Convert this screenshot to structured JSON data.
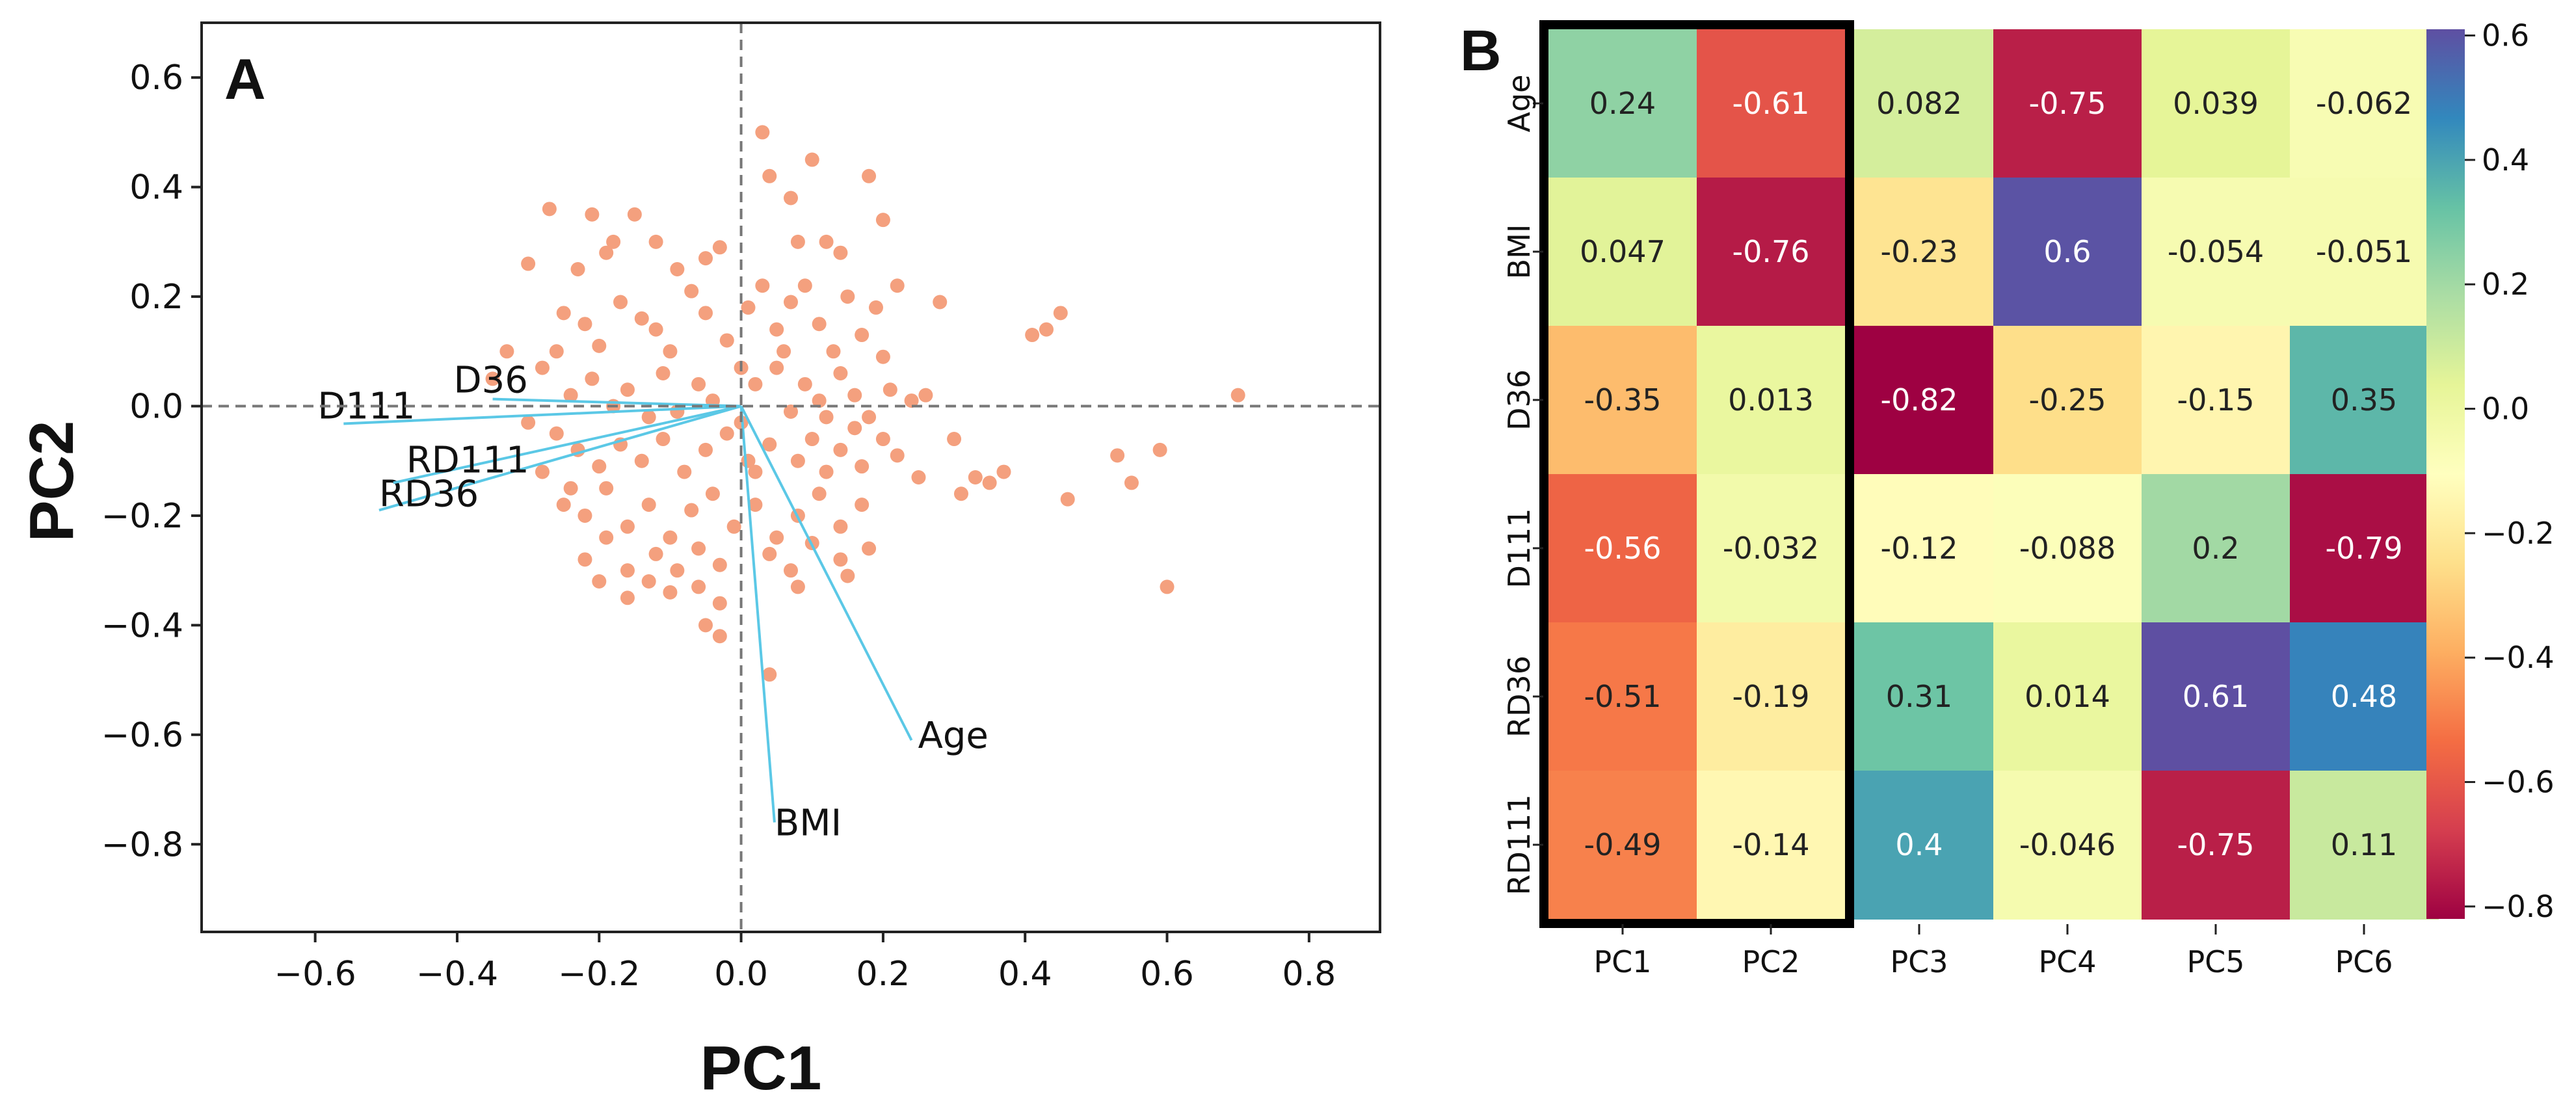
{
  "chart_data": [
    {
      "type": "scatter",
      "panel_label": "A",
      "title": "",
      "xlabel": "PC1",
      "ylabel": "PC2",
      "xlim": [
        -0.76,
        0.9
      ],
      "ylim": [
        -0.96,
        0.7
      ],
      "x_ticks": [
        -0.6,
        -0.4,
        -0.2,
        0.0,
        0.2,
        0.4,
        0.6,
        0.8
      ],
      "y_ticks": [
        0.6,
        0.4,
        0.2,
        0.0,
        -0.2,
        -0.4,
        -0.6,
        -0.8
      ],
      "x_tick_labels": [
        "−0.6",
        "−0.4",
        "−0.2",
        "0.0",
        "0.2",
        "0.4",
        "0.6",
        "0.8"
      ],
      "y_tick_labels": [
        "0.6",
        "0.4",
        "0.2",
        "0.0",
        "−0.2",
        "−0.4",
        "−0.6",
        "−0.8"
      ],
      "grid": false,
      "reference_lines": [
        "x=0 dashed",
        "y=0 dashed"
      ],
      "point_color": "#f4a07e",
      "vector_color": "#5bc8e6",
      "loadings": [
        {
          "name": "Age",
          "x": 0.24,
          "y": -0.61
        },
        {
          "name": "BMI",
          "x": 0.047,
          "y": -0.76
        },
        {
          "name": "D36",
          "x": -0.35,
          "y": 0.013
        },
        {
          "name": "D111",
          "x": -0.56,
          "y": -0.032
        },
        {
          "name": "RD36",
          "x": -0.51,
          "y": -0.19
        },
        {
          "name": "RD111",
          "x": -0.49,
          "y": -0.14
        }
      ],
      "points": [
        [
          -0.27,
          0.36
        ],
        [
          -0.21,
          0.35
        ],
        [
          -0.3,
          0.26
        ],
        [
          -0.23,
          0.25
        ],
        [
          -0.19,
          0.28
        ],
        [
          -0.18,
          0.3
        ],
        [
          -0.15,
          0.35
        ],
        [
          -0.12,
          0.3
        ],
        [
          -0.09,
          0.25
        ],
        [
          -0.05,
          0.27
        ],
        [
          -0.03,
          0.29
        ],
        [
          0.03,
          0.5
        ],
        [
          0.04,
          0.42
        ],
        [
          0.07,
          0.38
        ],
        [
          0.1,
          0.45
        ],
        [
          0.08,
          0.3
        ],
        [
          0.12,
          0.3
        ],
        [
          0.14,
          0.28
        ],
        [
          0.18,
          0.42
        ],
        [
          0.2,
          0.34
        ],
        [
          0.22,
          0.22
        ],
        [
          -0.25,
          0.17
        ],
        [
          -0.22,
          0.15
        ],
        [
          -0.2,
          0.11
        ],
        [
          -0.17,
          0.19
        ],
        [
          -0.14,
          0.16
        ],
        [
          -0.12,
          0.14
        ],
        [
          -0.1,
          0.1
        ],
        [
          -0.07,
          0.21
        ],
        [
          -0.05,
          0.17
        ],
        [
          -0.02,
          0.12
        ],
        [
          0.01,
          0.18
        ],
        [
          0.03,
          0.22
        ],
        [
          0.05,
          0.14
        ],
        [
          0.07,
          0.19
        ],
        [
          0.09,
          0.22
        ],
        [
          0.11,
          0.15
        ],
        [
          0.13,
          0.1
        ],
        [
          0.15,
          0.2
        ],
        [
          0.17,
          0.13
        ],
        [
          0.19,
          0.18
        ],
        [
          0.2,
          0.09
        ],
        [
          -0.28,
          0.07
        ],
        [
          -0.24,
          0.02
        ],
        [
          -0.21,
          0.05
        ],
        [
          -0.18,
          0.0
        ],
        [
          -0.16,
          0.03
        ],
        [
          -0.13,
          -0.02
        ],
        [
          -0.11,
          0.06
        ],
        [
          -0.09,
          -0.01
        ],
        [
          -0.06,
          0.04
        ],
        [
          -0.04,
          0.01
        ],
        [
          0.02,
          0.04
        ],
        [
          0.05,
          0.07
        ],
        [
          0.07,
          -0.01
        ],
        [
          0.09,
          0.04
        ],
        [
          0.11,
          0.01
        ],
        [
          0.14,
          0.06
        ],
        [
          0.16,
          0.02
        ],
        [
          0.18,
          -0.02
        ],
        [
          0.21,
          0.03
        ],
        [
          0.24,
          0.01
        ],
        [
          0.26,
          0.02
        ],
        [
          -0.26,
          -0.05
        ],
        [
          -0.23,
          -0.08
        ],
        [
          -0.2,
          -0.11
        ],
        [
          -0.17,
          -0.07
        ],
        [
          -0.14,
          -0.1
        ],
        [
          -0.11,
          -0.06
        ],
        [
          -0.08,
          -0.12
        ],
        [
          -0.05,
          -0.08
        ],
        [
          -0.02,
          -0.05
        ],
        [
          0.01,
          -0.1
        ],
        [
          0.04,
          -0.07
        ],
        [
          0.08,
          -0.1
        ],
        [
          0.1,
          -0.06
        ],
        [
          0.12,
          -0.12
        ],
        [
          0.14,
          -0.08
        ],
        [
          0.17,
          -0.11
        ],
        [
          0.2,
          -0.06
        ],
        [
          0.22,
          -0.09
        ],
        [
          0.25,
          -0.13
        ],
        [
          -0.25,
          -0.18
        ],
        [
          -0.22,
          -0.2
        ],
        [
          -0.19,
          -0.15
        ],
        [
          -0.16,
          -0.22
        ],
        [
          -0.13,
          -0.18
        ],
        [
          -0.1,
          -0.24
        ],
        [
          -0.07,
          -0.19
        ],
        [
          -0.04,
          -0.16
        ],
        [
          -0.01,
          -0.22
        ],
        [
          0.02,
          -0.18
        ],
        [
          0.05,
          -0.24
        ],
        [
          0.08,
          -0.2
        ],
        [
          0.11,
          -0.16
        ],
        [
          0.14,
          -0.22
        ],
        [
          0.17,
          -0.18
        ],
        [
          -0.22,
          -0.28
        ],
        [
          -0.19,
          -0.24
        ],
        [
          -0.16,
          -0.3
        ],
        [
          -0.12,
          -0.27
        ],
        [
          -0.09,
          -0.3
        ],
        [
          -0.06,
          -0.26
        ],
        [
          -0.03,
          -0.29
        ],
        [
          0.04,
          -0.27
        ],
        [
          0.07,
          -0.3
        ],
        [
          0.1,
          -0.25
        ],
        [
          0.14,
          -0.28
        ],
        [
          0.18,
          -0.26
        ],
        [
          -0.2,
          -0.32
        ],
        [
          -0.16,
          -0.35
        ],
        [
          -0.13,
          -0.32
        ],
        [
          -0.1,
          -0.34
        ],
        [
          -0.06,
          -0.33
        ],
        [
          -0.03,
          -0.36
        ],
        [
          0.08,
          -0.33
        ],
        [
          0.15,
          -0.31
        ],
        [
          -0.05,
          -0.4
        ],
        [
          -0.03,
          -0.42
        ],
        [
          0.04,
          -0.49
        ],
        [
          0.28,
          0.19
        ],
        [
          0.3,
          -0.06
        ],
        [
          0.33,
          -0.13
        ],
        [
          0.35,
          -0.14
        ],
        [
          0.31,
          -0.16
        ],
        [
          0.37,
          -0.12
        ],
        [
          0.41,
          0.13
        ],
        [
          0.43,
          0.14
        ],
        [
          0.45,
          0.17
        ],
        [
          0.46,
          -0.17
        ],
        [
          0.53,
          -0.09
        ],
        [
          0.55,
          -0.14
        ],
        [
          0.59,
          -0.08
        ],
        [
          0.6,
          -0.33
        ],
        [
          0.7,
          0.02
        ],
        [
          -0.33,
          0.1
        ],
        [
          -0.35,
          0.05
        ],
        [
          -0.3,
          -0.03
        ],
        [
          -0.28,
          -0.12
        ],
        [
          -0.26,
          0.1
        ],
        [
          -0.24,
          -0.15
        ],
        [
          0.0,
          0.07
        ],
        [
          0.0,
          -0.03
        ],
        [
          0.02,
          -0.12
        ],
        [
          0.06,
          0.1
        ],
        [
          0.12,
          -0.02
        ],
        [
          0.16,
          -0.04
        ]
      ]
    },
    {
      "type": "heatmap",
      "panel_label": "B",
      "title": "",
      "rows": [
        "Age",
        "BMI",
        "D36",
        "D111",
        "RD36",
        "RD111"
      ],
      "columns": [
        "PC1",
        "PC2",
        "PC3",
        "PC4",
        "PC5",
        "PC6"
      ],
      "values": [
        [
          0.24,
          -0.61,
          0.082,
          -0.75,
          0.039,
          -0.062
        ],
        [
          0.047,
          -0.76,
          -0.23,
          0.6,
          -0.054,
          -0.051
        ],
        [
          -0.35,
          0.013,
          -0.82,
          -0.25,
          -0.15,
          0.35
        ],
        [
          -0.56,
          -0.032,
          -0.12,
          -0.088,
          0.2,
          -0.79
        ],
        [
          -0.51,
          -0.19,
          0.31,
          0.014,
          0.61,
          0.48
        ],
        [
          -0.49,
          -0.14,
          0.4,
          -0.046,
          -0.75,
          0.11
        ]
      ],
      "value_labels": [
        [
          "0.24",
          "-0.61",
          "0.082",
          "-0.75",
          "0.039",
          "-0.062"
        ],
        [
          "0.047",
          "-0.76",
          "-0.23",
          "0.6",
          "-0.054",
          "-0.051"
        ],
        [
          "-0.35",
          "0.013",
          "-0.82",
          "-0.25",
          "-0.15",
          "0.35"
        ],
        [
          "-0.56",
          "-0.032",
          "-0.12",
          "-0.088",
          "0.2",
          "-0.79"
        ],
        [
          "-0.51",
          "-0.19",
          "0.31",
          "0.014",
          "0.61",
          "0.48"
        ],
        [
          "-0.49",
          "-0.14",
          "0.4",
          "-0.046",
          "-0.75",
          "0.11"
        ]
      ],
      "highlighted_columns": [
        "PC1",
        "PC2"
      ],
      "colormap": "Spectral",
      "colorbar_range": [
        -0.82,
        0.61
      ],
      "colorbar_ticks": [
        0.6,
        0.4,
        0.2,
        0.0,
        -0.2,
        -0.4,
        -0.6,
        -0.8
      ],
      "colorbar_tick_labels": [
        "0.6",
        "0.4",
        "0.2",
        "0.0",
        "−0.2",
        "−0.4",
        "−0.6",
        "−0.8"
      ]
    }
  ]
}
